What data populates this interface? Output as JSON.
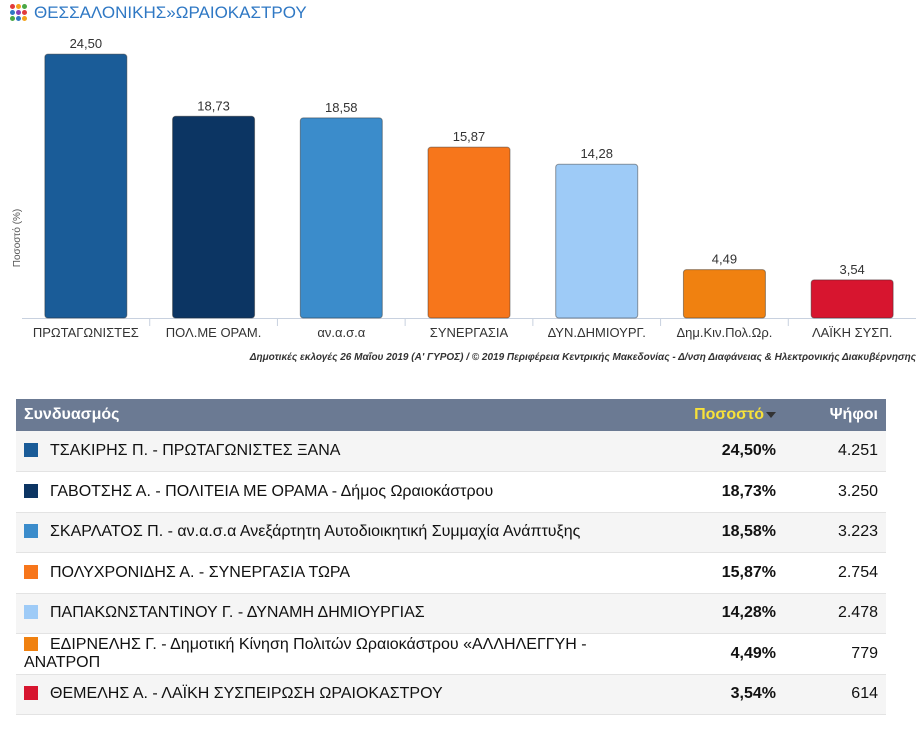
{
  "header": {
    "region": "ΘΕΣΣΑΛΟΝΙΚΗΣ",
    "separator": "»",
    "municipality": "ΩΡΑΙΟΚΑΣΤΡΟΥ"
  },
  "chart_data": {
    "type": "bar",
    "categories": [
      "ΠΡΩΤΑΓΩΝΙΣΤΕΣ",
      "ΠΟΛ.ΜΕ ΟΡΑΜ.",
      "αν.α.σ.α",
      "ΣΥΝΕΡΓΑΣΙΑ",
      "ΔΥΝ.ΔΗΜΙΟΥΡΓ.",
      "Δημ.Κιν.Πολ.Ωρ.",
      "ΛΑΪΚΗ ΣΥΣΠ."
    ],
    "values": [
      24.5,
      18.73,
      18.58,
      15.87,
      14.28,
      4.49,
      3.54
    ],
    "value_labels": [
      "24,50",
      "18,73",
      "18,58",
      "15,87",
      "14,28",
      "4,49",
      "3,54"
    ],
    "colors": [
      "#1a5c98",
      "#0c3563",
      "#3b8ccb",
      "#f7761b",
      "#9ecbf7",
      "#f08110",
      "#d7152f"
    ],
    "ylabel": "Ποσοστό (%)",
    "ylim": [
      0,
      26
    ],
    "grid": false,
    "legend": "none"
  },
  "credit": "Δημοτικές εκλογές 26 Μαΐου 2019 (Α' ΓΥΡΟΣ) / © 2019 Περιφέρεια Κεντρικής Μακεδονίας - Δ/νση Διαφάνειας & Ηλεκτρονικής Διακυβέρνησης",
  "table": {
    "headers": {
      "name": "Συνδυασμός",
      "pct": "Ποσοστό",
      "votes": "Ψήφοι"
    },
    "rows": [
      {
        "name": "ΤΣΑΚΙΡΗΣ Π. - ΠΡΩΤΑΓΩΝΙΣΤΕΣ ΞΑΝΑ",
        "pct": "24,50%",
        "votes": "4.251",
        "color": "#1a5c98"
      },
      {
        "name": "ΓΑΒΟΤΣΗΣ Α. - ΠΟΛΙΤΕΙΑ ΜΕ ΟΡΑΜΑ - Δήμος Ωραιοκάστρου",
        "pct": "18,73%",
        "votes": "3.250",
        "color": "#0c3563"
      },
      {
        "name": "ΣΚΑΡΛΑΤΟΣ Π. - αν.α.σ.α Ανεξάρτητη Αυτοδιοικητική Συμμαχία Ανάπτυξης",
        "pct": "18,58%",
        "votes": "3.223",
        "color": "#3b8ccb"
      },
      {
        "name": "ΠΟΛΥΧΡΟΝΙΔΗΣ Α. - ΣΥΝΕΡΓΑΣΙΑ ΤΩΡΑ",
        "pct": "15,87%",
        "votes": "2.754",
        "color": "#f7761b"
      },
      {
        "name": "ΠΑΠΑΚΩΝΣΤΑΝΤΙΝΟΥ Γ. - ΔΥΝΑΜΗ ΔΗΜΙΟΥΡΓΙΑΣ",
        "pct": "14,28%",
        "votes": "2.478",
        "color": "#9ecbf7"
      },
      {
        "name": "ΕΔΙΡΝΕΛΗΣ Γ. - Δημοτική Κίνηση Πολιτών Ωραιοκάστρου «ΑΛΛΗΛΕΓΓΥΗ - ΑΝΑΤΡΟΠ",
        "pct": "4,49%",
        "votes": "779",
        "color": "#f08110"
      },
      {
        "name": "ΘΕΜΕΛΗΣ Α. - ΛΑΪΚΗ ΣΥΣΠΕΙΡΩΣΗ ΩΡΑΙΟΚΑΣΤΡΟΥ",
        "pct": "3,54%",
        "votes": "614",
        "color": "#d7152f"
      }
    ]
  }
}
